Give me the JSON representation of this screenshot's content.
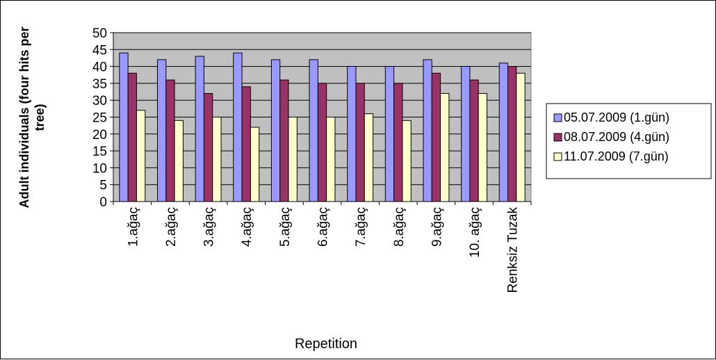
{
  "chart_data": {
    "type": "bar",
    "title": "",
    "xlabel": "Repetition",
    "ylabel_lines": [
      "Adult individuals (four hits per",
      "tree)"
    ],
    "ylim": [
      0,
      50
    ],
    "y_ticks": [
      "0",
      "5",
      "10",
      "15",
      "20",
      "25",
      "30",
      "35",
      "40",
      "45",
      "50"
    ],
    "grid": true,
    "legend_position": "right",
    "plot_background": "#c0c0c0",
    "categories": [
      "1.ağaç",
      "2.ağaç",
      "3.ağaç",
      "4.ağaç",
      "5.ağaç",
      "6.ağaç",
      "7.ağaç",
      "8.ağaç",
      "9.ağaç",
      "10. ağaç",
      "Renksiz Tuzak"
    ],
    "series": [
      {
        "name": "05.07.2009 (1.gün)",
        "color": "#9999ff",
        "values": [
          44,
          42,
          43,
          44,
          42,
          42,
          40,
          40,
          42,
          40,
          41
        ]
      },
      {
        "name": "08.07.2009 (4.gün)",
        "color": "#993366",
        "values": [
          38,
          36,
          32,
          34,
          36,
          35,
          35,
          35,
          38,
          36,
          40
        ]
      },
      {
        "name": "11.07.2009 (7.gün)",
        "color": "#ffffcc",
        "values": [
          27,
          24,
          25,
          22,
          25,
          25,
          26,
          24,
          32,
          32,
          38
        ]
      }
    ]
  }
}
